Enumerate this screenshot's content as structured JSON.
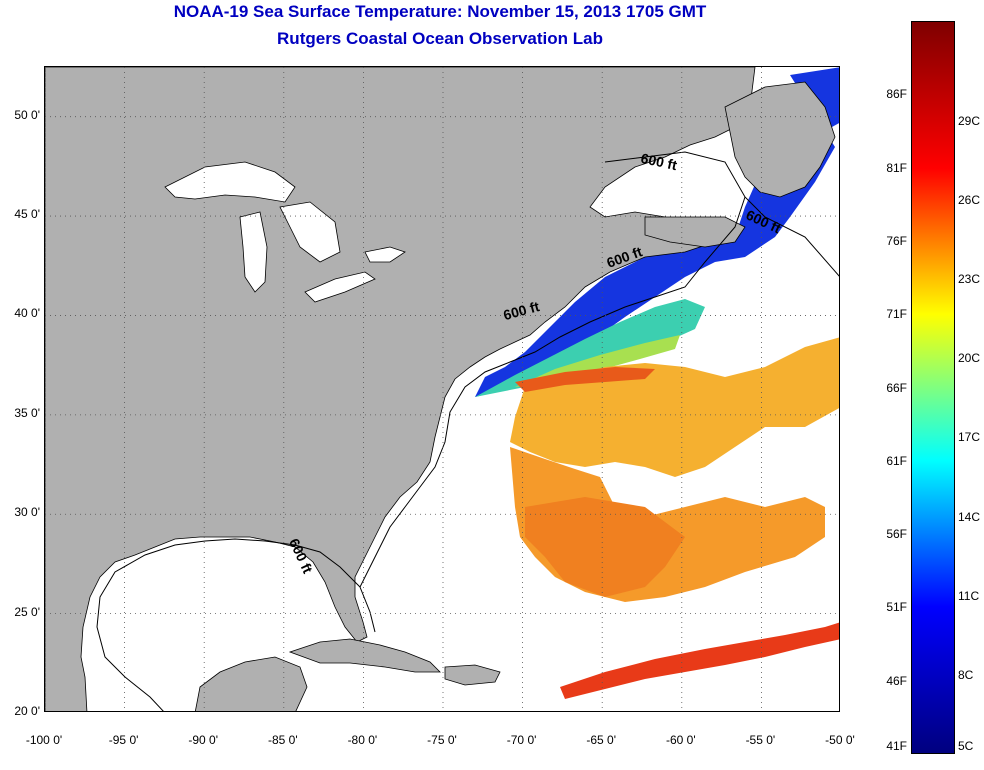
{
  "title": {
    "line1": "NOAA-19 Sea Surface Temperature:  November 15, 2013 1705 GMT",
    "line2": "Rutgers Coastal Ocean Observation Lab"
  },
  "map": {
    "lon_ticks": [
      {
        "value": -100,
        "label": "-100 0'"
      },
      {
        "value": -95,
        "label": "-95 0'"
      },
      {
        "value": -90,
        "label": "-90 0'"
      },
      {
        "value": -85,
        "label": "-85 0'"
      },
      {
        "value": -80,
        "label": "-80 0'"
      },
      {
        "value": -75,
        "label": "-75 0'"
      },
      {
        "value": -70,
        "label": "-70 0'"
      },
      {
        "value": -65,
        "label": "-65 0'"
      },
      {
        "value": -60,
        "label": "-60 0'"
      },
      {
        "value": -55,
        "label": "-55 0'"
      },
      {
        "value": -50,
        "label": "-50 0'"
      }
    ],
    "lat_ticks": [
      {
        "value": 50,
        "label": "50 0'"
      },
      {
        "value": 45,
        "label": "45 0'"
      },
      {
        "value": 40,
        "label": "40 0'"
      },
      {
        "value": 35,
        "label": "35 0'"
      },
      {
        "value": 30,
        "label": "30 0'"
      },
      {
        "value": 25,
        "label": "25 0'"
      },
      {
        "value": 20,
        "label": "20 0'"
      }
    ],
    "grid": "dotted",
    "land_color": "#b0b0b0",
    "ocean_color": "#ffffff",
    "contour_labels": [
      {
        "text": "600 ft",
        "lon": -61.5,
        "lat": 47.5,
        "rot": 12
      },
      {
        "text": "600 ft",
        "lon": -55.0,
        "lat": 44.5,
        "rot": 25
      },
      {
        "text": "600 ft",
        "lon": -63.5,
        "lat": 42.7,
        "rot": -20
      },
      {
        "text": "600 ft",
        "lon": -70.0,
        "lat": 40.0,
        "rot": -15
      },
      {
        "text": "600 ft",
        "lon": -84.2,
        "lat": 27.8,
        "rot": 65
      }
    ]
  },
  "colorbar": {
    "colors": [
      "#00007f",
      "#0000ff",
      "#00ffff",
      "#ffff00",
      "#ff0000",
      "#7f0000"
    ],
    "fahrenheit": [
      {
        "value": 86,
        "label": "86F"
      },
      {
        "value": 81,
        "label": "81F"
      },
      {
        "value": 76,
        "label": "76F"
      },
      {
        "value": 71,
        "label": "71F"
      },
      {
        "value": 66,
        "label": "66F"
      },
      {
        "value": 61,
        "label": "61F"
      },
      {
        "value": 56,
        "label": "56F"
      },
      {
        "value": 51,
        "label": "51F"
      },
      {
        "value": 46,
        "label": "46F"
      },
      {
        "value": 41,
        "label": "41F"
      }
    ],
    "celsius": [
      {
        "value": 29,
        "label": "29C"
      },
      {
        "value": 26,
        "label": "26C"
      },
      {
        "value": 23,
        "label": "23C"
      },
      {
        "value": 20,
        "label": "20C"
      },
      {
        "value": 17,
        "label": "17C"
      },
      {
        "value": 14,
        "label": "14C"
      },
      {
        "value": 11,
        "label": "11C"
      },
      {
        "value": 8,
        "label": "8C"
      },
      {
        "value": 5,
        "label": "5C"
      }
    ]
  }
}
